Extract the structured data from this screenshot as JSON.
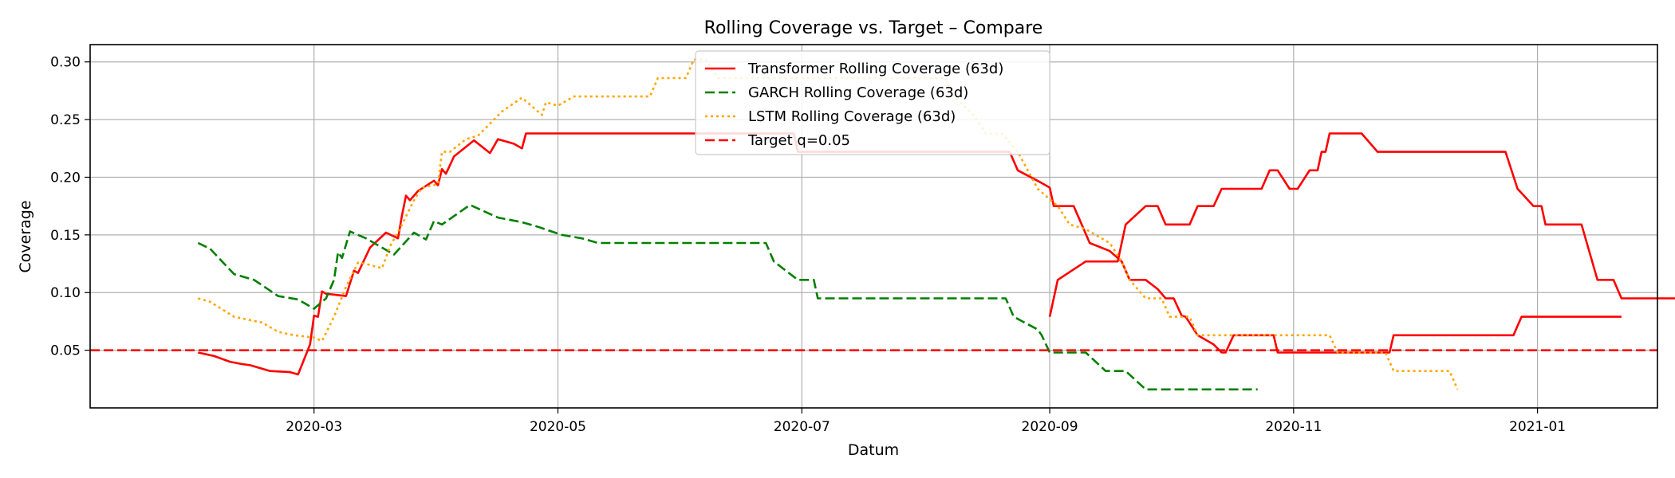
{
  "chart_data": {
    "type": "line",
    "title": "Rolling Coverage vs. Target – Compare",
    "xlabel": "Datum",
    "ylabel": "Coverage",
    "xlim": [
      "2020-01-05",
      "2021-01-31"
    ],
    "ylim": [
      0.0,
      0.315
    ],
    "x_ticks": [
      "2020-03-01",
      "2020-05-01",
      "2020-07-01",
      "2020-09-01",
      "2020-11-01",
      "2021-01-01"
    ],
    "x_tick_labels": [
      "2020-03",
      "2020-05",
      "2020-07",
      "2020-09",
      "2020-11",
      "2021-01"
    ],
    "y_ticks": [
      0.05,
      0.1,
      0.15,
      0.2,
      0.25,
      0.3
    ],
    "y_tick_labels": [
      "0.05",
      "0.10",
      "0.15",
      "0.20",
      "0.25",
      "0.30"
    ],
    "grid": true,
    "legend_placement": "upper-center",
    "target": {
      "name": "Target q=0.05",
      "value": 0.05,
      "color": "#ff0000",
      "style": "dashed"
    },
    "series": [
      {
        "name": "Transformer Rolling Coverage (63d)",
        "color": "#ff0000",
        "style": "solid",
        "points": [
          [
            "2020-02-01",
            0.048
          ],
          [
            "2020-02-05",
            0.045
          ],
          [
            "2020-02-09",
            0.04
          ],
          [
            "2020-02-12",
            0.038
          ],
          [
            "2020-02-14",
            0.037
          ],
          [
            "2020-02-17",
            0.034
          ],
          [
            "2020-02-19",
            0.032
          ],
          [
            "2020-02-24",
            0.031
          ],
          [
            "2020-02-26",
            0.029
          ],
          [
            "2020-02-29",
            0.055
          ],
          [
            "2020-03-01",
            0.08
          ],
          [
            "2020-03-02",
            0.079
          ],
          [
            "2020-03-03",
            0.101
          ],
          [
            "2020-03-04",
            0.099
          ],
          [
            "2020-03-09",
            0.097
          ],
          [
            "2020-03-11",
            0.119
          ],
          [
            "2020-03-12",
            0.117
          ],
          [
            "2020-03-15",
            0.139
          ],
          [
            "2020-03-19",
            0.152
          ],
          [
            "2020-03-22",
            0.147
          ],
          [
            "2020-03-23",
            0.167
          ],
          [
            "2020-03-24",
            0.184
          ],
          [
            "2020-03-25",
            0.18
          ],
          [
            "2020-03-27",
            0.188
          ],
          [
            "2020-03-31",
            0.197
          ],
          [
            "2020-04-01",
            0.193
          ],
          [
            "2020-04-02",
            0.207
          ],
          [
            "2020-04-03",
            0.203
          ],
          [
            "2020-04-05",
            0.218
          ],
          [
            "2020-04-10",
            0.232
          ],
          [
            "2020-04-14",
            0.221
          ],
          [
            "2020-04-16",
            0.233
          ],
          [
            "2020-04-20",
            0.229
          ],
          [
            "2020-04-22",
            0.225
          ],
          [
            "2020-04-23",
            0.238
          ],
          [
            "2020-05-01",
            0.238
          ],
          [
            "2020-05-31",
            0.238
          ],
          [
            "2020-06-29",
            0.238
          ],
          [
            "2020-06-30",
            0.222
          ],
          [
            "2020-07-29",
            0.222
          ],
          [
            "2020-08-22",
            0.222
          ],
          [
            "2020-08-24",
            0.206
          ],
          [
            "2020-08-30",
            0.195
          ],
          [
            "2020-09-01",
            0.191
          ],
          [
            "2020-09-02",
            0.175
          ],
          [
            "2020-09-07",
            0.175
          ],
          [
            "2020-09-09",
            0.159
          ],
          [
            "2020-09-11",
            0.143
          ],
          [
            "2020-09-16",
            0.136
          ],
          [
            "2020-09-19",
            0.127
          ],
          [
            "2020-09-21",
            0.111
          ],
          [
            "2020-09-25",
            0.111
          ],
          [
            "2020-09-28",
            0.103
          ],
          [
            "2020-09-30",
            0.095
          ],
          [
            "2020-10-02",
            0.095
          ],
          [
            "2020-10-04",
            0.08
          ],
          [
            "2020-10-05",
            0.079
          ],
          [
            "2020-10-08",
            0.063
          ],
          [
            "2020-10-12",
            0.055
          ],
          [
            "2020-10-14",
            0.048
          ],
          [
            "2020-10-15",
            0.048
          ],
          [
            "2020-10-17",
            0.063
          ],
          [
            "2020-10-27",
            0.063
          ],
          [
            "2020-10-28",
            0.048
          ],
          [
            "2020-11-25",
            0.048
          ],
          [
            "2020-11-26",
            0.063
          ],
          [
            "2020-12-26",
            0.063
          ],
          [
            "2020-12-28",
            0.079
          ],
          [
            "2021-01-22",
            0.079
          ],
          [
            "2020-09-01",
            0.079
          ],
          [
            "2020-09-03",
            0.111
          ],
          [
            "2020-09-10",
            0.127
          ],
          [
            "2020-09-18",
            0.127
          ],
          [
            "2020-09-20",
            0.159
          ],
          [
            "2020-09-25",
            0.175
          ],
          [
            "2020-09-28",
            0.175
          ],
          [
            "2020-09-30",
            0.159
          ],
          [
            "2020-10-06",
            0.159
          ],
          [
            "2020-10-08",
            0.175
          ],
          [
            "2020-10-12",
            0.175
          ],
          [
            "2020-10-14",
            0.19
          ],
          [
            "2020-10-24",
            0.19
          ],
          [
            "2020-10-26",
            0.206
          ],
          [
            "2020-10-28",
            0.206
          ],
          [
            "2020-10-31",
            0.19
          ],
          [
            "2020-11-02",
            0.19
          ],
          [
            "2020-11-05",
            0.206
          ],
          [
            "2020-11-07",
            0.206
          ],
          [
            "2020-11-08",
            0.222
          ],
          [
            "2020-11-09",
            0.222
          ],
          [
            "2020-11-10",
            0.238
          ],
          [
            "2020-11-18",
            0.238
          ],
          [
            "2020-11-22",
            0.222
          ],
          [
            "2020-12-24",
            0.222
          ],
          [
            "2020-12-27",
            0.19
          ],
          [
            "2020-12-31",
            0.175
          ],
          [
            "2021-01-02",
            0.175
          ],
          [
            "2021-01-03",
            0.159
          ],
          [
            "2021-01-09",
            0.159
          ],
          [
            "2021-01-12",
            0.159
          ],
          [
            "2021-01-16",
            0.111
          ],
          [
            "2021-01-20",
            0.111
          ],
          [
            "2021-01-22",
            0.095
          ],
          [
            "2021-02-05",
            0.095
          ]
        ]
      },
      {
        "name": "GARCH Rolling Coverage (63d)",
        "color": "#008000",
        "style": "dashed",
        "points": [
          [
            "2020-02-01",
            0.143
          ],
          [
            "2020-02-04",
            0.138
          ],
          [
            "2020-02-07",
            0.127
          ],
          [
            "2020-02-10",
            0.116
          ],
          [
            "2020-02-15",
            0.111
          ],
          [
            "2020-02-18",
            0.104
          ],
          [
            "2020-02-21",
            0.097
          ],
          [
            "2020-02-26",
            0.094
          ],
          [
            "2020-03-01",
            0.086
          ],
          [
            "2020-03-04",
            0.095
          ],
          [
            "2020-03-06",
            0.111
          ],
          [
            "2020-03-07",
            0.135
          ],
          [
            "2020-03-08",
            0.13
          ],
          [
            "2020-03-10",
            0.153
          ],
          [
            "2020-03-14",
            0.147
          ],
          [
            "2020-03-18",
            0.139
          ],
          [
            "2020-03-21",
            0.133
          ],
          [
            "2020-03-26",
            0.152
          ],
          [
            "2020-03-29",
            0.146
          ],
          [
            "2020-03-31",
            0.162
          ],
          [
            "2020-04-02",
            0.159
          ],
          [
            "2020-04-09",
            0.176
          ],
          [
            "2020-04-16",
            0.165
          ],
          [
            "2020-04-22",
            0.161
          ],
          [
            "2020-04-26",
            0.157
          ],
          [
            "2020-05-02",
            0.15
          ],
          [
            "2020-05-07",
            0.147
          ],
          [
            "2020-05-11",
            0.143
          ],
          [
            "2020-05-18",
            0.143
          ],
          [
            "2020-06-22",
            0.143
          ],
          [
            "2020-06-24",
            0.127
          ],
          [
            "2020-06-30",
            0.111
          ],
          [
            "2020-07-04",
            0.111
          ],
          [
            "2020-07-05",
            0.095
          ],
          [
            "2020-08-21",
            0.095
          ],
          [
            "2020-08-23",
            0.079
          ],
          [
            "2020-08-29",
            0.068
          ],
          [
            "2020-08-30",
            0.063
          ],
          [
            "2020-09-01",
            0.048
          ],
          [
            "2020-09-10",
            0.048
          ],
          [
            "2020-09-15",
            0.032
          ],
          [
            "2020-09-20",
            0.032
          ],
          [
            "2020-09-25",
            0.016
          ],
          [
            "2020-10-23",
            0.016
          ]
        ]
      },
      {
        "name": "LSTM Rolling Coverage (63d)",
        "color": "#ffa500",
        "style": "dotted",
        "points": [
          [
            "2020-02-01",
            0.095
          ],
          [
            "2020-02-04",
            0.092
          ],
          [
            "2020-02-10",
            0.079
          ],
          [
            "2020-02-17",
            0.074
          ],
          [
            "2020-02-21",
            0.066
          ],
          [
            "2020-02-25",
            0.063
          ],
          [
            "2020-03-01",
            0.061
          ],
          [
            "2020-03-03",
            0.058
          ],
          [
            "2020-03-06",
            0.079
          ],
          [
            "2020-03-09",
            0.105
          ],
          [
            "2020-03-12",
            0.126
          ],
          [
            "2020-03-15",
            0.124
          ],
          [
            "2020-03-18",
            0.121
          ],
          [
            "2020-03-20",
            0.14
          ],
          [
            "2020-03-23",
            0.159
          ],
          [
            "2020-03-26",
            0.18
          ],
          [
            "2020-03-28",
            0.191
          ],
          [
            "2020-04-01",
            0.194
          ],
          [
            "2020-04-02",
            0.222
          ],
          [
            "2020-04-04",
            0.222
          ],
          [
            "2020-04-08",
            0.233
          ],
          [
            "2020-04-11",
            0.236
          ],
          [
            "2020-04-13",
            0.243
          ],
          [
            "2020-04-17",
            0.257
          ],
          [
            "2020-04-22",
            0.269
          ],
          [
            "2020-04-27",
            0.254
          ],
          [
            "2020-04-28",
            0.265
          ],
          [
            "2020-05-01",
            0.262
          ],
          [
            "2020-05-05",
            0.27
          ],
          [
            "2020-05-24",
            0.27
          ],
          [
            "2020-05-26",
            0.286
          ],
          [
            "2020-06-02",
            0.286
          ],
          [
            "2020-06-04",
            0.302
          ],
          [
            "2020-06-07",
            0.302
          ],
          [
            "2020-06-10",
            0.286
          ],
          [
            "2020-08-06",
            0.286
          ],
          [
            "2020-08-08",
            0.27
          ],
          [
            "2020-08-13",
            0.254
          ],
          [
            "2020-08-16",
            0.238
          ],
          [
            "2020-08-20",
            0.238
          ],
          [
            "2020-08-24",
            0.222
          ],
          [
            "2020-08-29",
            0.19
          ],
          [
            "2020-09-03",
            0.175
          ],
          [
            "2020-09-06",
            0.159
          ],
          [
            "2020-09-10",
            0.155
          ],
          [
            "2020-09-16",
            0.143
          ],
          [
            "2020-09-19",
            0.127
          ],
          [
            "2020-09-21",
            0.111
          ],
          [
            "2020-09-25",
            0.095
          ],
          [
            "2020-09-29",
            0.095
          ],
          [
            "2020-10-01",
            0.079
          ],
          [
            "2020-10-06",
            0.079
          ],
          [
            "2020-10-08",
            0.063
          ],
          [
            "2020-11-10",
            0.063
          ],
          [
            "2020-11-12",
            0.048
          ],
          [
            "2020-11-24",
            0.048
          ],
          [
            "2020-11-26",
            0.032
          ],
          [
            "2020-12-10",
            0.032
          ],
          [
            "2020-12-12",
            0.016
          ]
        ]
      }
    ]
  }
}
